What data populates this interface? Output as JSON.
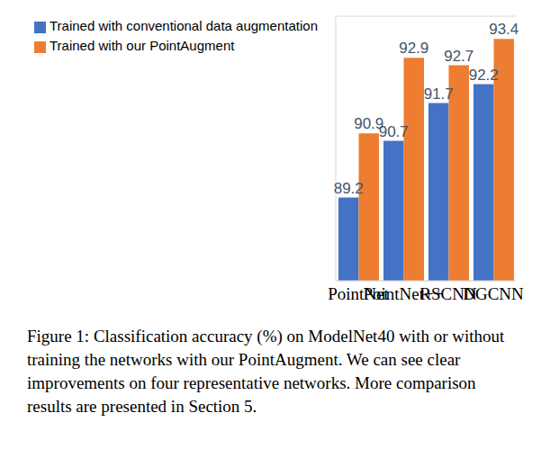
{
  "chart_data": {
    "type": "bar",
    "categories": [
      "PointNet",
      "PointNet++",
      "RSCNN",
      "DGCNN"
    ],
    "series": [
      {
        "name": "Trained with conventional data augmentation",
        "color": "#4472c4",
        "values": [
          89.2,
          90.7,
          91.7,
          92.2
        ]
      },
      {
        "name": "Trained with our PointAugment",
        "color": "#ed7d31",
        "values": [
          90.9,
          92.9,
          92.7,
          93.4
        ]
      }
    ],
    "ylim": [
      87,
      94
    ],
    "yticks": [
      87,
      88,
      89,
      90,
      91,
      92,
      93,
      94
    ],
    "grid": true,
    "legend": "top left",
    "data_labels": true,
    "tick_labels": "x",
    "caption": "Figure 1: Classification accuracy (%) on ModelNet40 with or without training the networks with our PointAugment. We can see clear improvements on four representative networks. More comparison results are presented in Section 5."
  }
}
